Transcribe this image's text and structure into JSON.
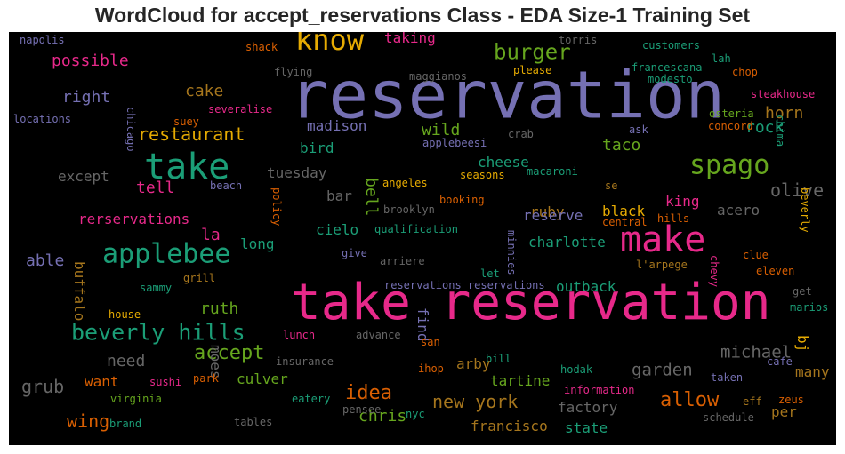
{
  "chart_data": {
    "type": "wordcloud",
    "title": "WordCloud for accept_reservations Class - EDA Size-1 Training Set",
    "background": "#000000",
    "words": [
      {
        "text": "reservation",
        "color": "#7570b3"
      },
      {
        "text": "take reservation",
        "color": "#e7298a"
      },
      {
        "text": "take",
        "color": "#1b9e77"
      },
      {
        "text": "make",
        "color": "#e7298a"
      },
      {
        "text": "know",
        "color": "#e6ab02"
      },
      {
        "text": "spago",
        "color": "#66a61e"
      },
      {
        "text": "applebee",
        "color": "#1b9e77"
      },
      {
        "text": "beverly hills",
        "color": "#1b9e77"
      },
      {
        "text": "burger",
        "color": "#66a61e"
      },
      {
        "text": "restaurant",
        "color": "#e6ab02"
      },
      {
        "text": "accept",
        "color": "#66a61e"
      },
      {
        "text": "idea",
        "color": "#d95f02"
      },
      {
        "text": "allow",
        "color": "#d95f02"
      },
      {
        "text": "garden",
        "color": "#666666"
      },
      {
        "text": "michael",
        "color": "#666666"
      },
      {
        "text": "new york",
        "color": "#a6761d"
      },
      {
        "text": "olive",
        "color": "#666666"
      },
      {
        "text": "grub",
        "color": "#666666"
      },
      {
        "text": "wing",
        "color": "#d95f02"
      },
      {
        "text": "possible",
        "color": "#e7298a"
      },
      {
        "text": "taco",
        "color": "#66a61e"
      },
      {
        "text": "ruth",
        "color": "#66a61e"
      },
      {
        "text": "chris",
        "color": "#66a61e"
      },
      {
        "text": "need",
        "color": "#666666"
      },
      {
        "text": "tell",
        "color": "#e7298a"
      },
      {
        "text": "la",
        "color": "#e7298a"
      },
      {
        "text": "able",
        "color": "#7570b3"
      },
      {
        "text": "cake",
        "color": "#a6761d"
      },
      {
        "text": "right",
        "color": "#7570b3"
      },
      {
        "text": "horn",
        "color": "#a6761d"
      },
      {
        "text": "rock",
        "color": "#1b9e77"
      },
      {
        "text": "wild",
        "color": "#66a61e"
      },
      {
        "text": "madison",
        "color": "#7570b3"
      },
      {
        "text": "cheese",
        "color": "#1b9e77"
      },
      {
        "text": "bird",
        "color": "#1b9e77"
      },
      {
        "text": "taking",
        "color": "#e7298a"
      },
      {
        "text": "tuesday",
        "color": "#666666"
      },
      {
        "text": "except",
        "color": "#666666"
      },
      {
        "text": "bar",
        "color": "#666666"
      },
      {
        "text": "bell",
        "color": "#66a61e"
      },
      {
        "text": "ruby",
        "color": "#a6761d"
      },
      {
        "text": "king",
        "color": "#e7298a"
      },
      {
        "text": "acero",
        "color": "#666666"
      },
      {
        "text": "black",
        "color": "#e6ab02"
      },
      {
        "text": "reserve",
        "color": "#7570b3"
      },
      {
        "text": "rerservations",
        "color": "#e7298a"
      },
      {
        "text": "long",
        "color": "#1b9e77"
      },
      {
        "text": "cielo",
        "color": "#1b9e77"
      },
      {
        "text": "charlotte",
        "color": "#1b9e77"
      },
      {
        "text": "outback",
        "color": "#1b9e77"
      },
      {
        "text": "buffalo",
        "color": "#a6761d"
      },
      {
        "text": "find",
        "color": "#7570b3"
      },
      {
        "text": "moes",
        "color": "#666666"
      },
      {
        "text": "arby",
        "color": "#a6761d"
      },
      {
        "text": "tartine",
        "color": "#66a61e"
      },
      {
        "text": "want",
        "color": "#d95f02"
      },
      {
        "text": "culver",
        "color": "#66a61e"
      },
      {
        "text": "factory",
        "color": "#666666"
      },
      {
        "text": "francisco",
        "color": "#a6761d"
      },
      {
        "text": "state",
        "color": "#1b9e77"
      },
      {
        "text": "bj",
        "color": "#e6ab02"
      },
      {
        "text": "many",
        "color": "#a6761d"
      },
      {
        "text": "per",
        "color": "#a6761d"
      },
      {
        "text": "napolis",
        "color": "#7570b3"
      },
      {
        "text": "shack",
        "color": "#d95f02"
      },
      {
        "text": "flying",
        "color": "#666666"
      },
      {
        "text": "maggianos",
        "color": "#666666"
      },
      {
        "text": "torris",
        "color": "#666666"
      },
      {
        "text": "customers",
        "color": "#1b9e77"
      },
      {
        "text": "lah",
        "color": "#1b9e77"
      },
      {
        "text": "please",
        "color": "#e6ab02"
      },
      {
        "text": "francescana",
        "color": "#1b9e77"
      },
      {
        "text": "chop",
        "color": "#d95f02"
      },
      {
        "text": "modesto",
        "color": "#1b9e77"
      },
      {
        "text": "steakhouse",
        "color": "#e7298a"
      },
      {
        "text": "locations",
        "color": "#7570b3"
      },
      {
        "text": "severalise",
        "color": "#e7298a"
      },
      {
        "text": "suey",
        "color": "#d95f02"
      },
      {
        "text": "chicago",
        "color": "#7570b3"
      },
      {
        "text": "ask",
        "color": "#7570b3"
      },
      {
        "text": "crab",
        "color": "#666666"
      },
      {
        "text": "osteria",
        "color": "#66a61e"
      },
      {
        "text": "concord",
        "color": "#d95f02"
      },
      {
        "text": "chima",
        "color": "#1b9e77"
      },
      {
        "text": "applebeesi",
        "color": "#7570b3"
      },
      {
        "text": "seasons",
        "color": "#e6ab02"
      },
      {
        "text": "macaroni",
        "color": "#1b9e77"
      },
      {
        "text": "angeles",
        "color": "#e6ab02"
      },
      {
        "text": "booking",
        "color": "#d95f02"
      },
      {
        "text": "se",
        "color": "#a6761d"
      },
      {
        "text": "beach",
        "color": "#7570b3"
      },
      {
        "text": "policy",
        "color": "#d95f02"
      },
      {
        "text": "brooklyn",
        "color": "#666666"
      },
      {
        "text": "central",
        "color": "#d95f02"
      },
      {
        "text": "hills",
        "color": "#d95f02"
      },
      {
        "text": "beverly",
        "color": "#e6ab02"
      },
      {
        "text": "qualification",
        "color": "#1b9e77"
      },
      {
        "text": "minnies",
        "color": "#7570b3"
      },
      {
        "text": "chevy",
        "color": "#e7298a"
      },
      {
        "text": "l'arpege",
        "color": "#a6761d"
      },
      {
        "text": "clue",
        "color": "#d95f02"
      },
      {
        "text": "eleven",
        "color": "#d95f02"
      },
      {
        "text": "give",
        "color": "#7570b3"
      },
      {
        "text": "arriere",
        "color": "#666666"
      },
      {
        "text": "let",
        "color": "#1b9e77"
      },
      {
        "text": "sammy",
        "color": "#1b9e77"
      },
      {
        "text": "grill",
        "color": "#a6761d"
      },
      {
        "text": "reservations reservations",
        "color": "#7570b3"
      },
      {
        "text": "get",
        "color": "#666666"
      },
      {
        "text": "marios",
        "color": "#1b9e77"
      },
      {
        "text": "house",
        "color": "#e6ab02"
      },
      {
        "text": "lunch",
        "color": "#e7298a"
      },
      {
        "text": "advance",
        "color": "#666666"
      },
      {
        "text": "insurance",
        "color": "#666666"
      },
      {
        "text": "san",
        "color": "#d95f02"
      },
      {
        "text": "ihop",
        "color": "#d95f02"
      },
      {
        "text": "bill",
        "color": "#1b9e77"
      },
      {
        "text": "hodak",
        "color": "#1b9e77"
      },
      {
        "text": "cafe",
        "color": "#7570b3"
      },
      {
        "text": "taken",
        "color": "#7570b3"
      },
      {
        "text": "sushi",
        "color": "#e7298a"
      },
      {
        "text": "park",
        "color": "#d95f02"
      },
      {
        "text": "information",
        "color": "#e7298a"
      },
      {
        "text": "zeus",
        "color": "#d95f02"
      },
      {
        "text": "eff",
        "color": "#a6761d"
      },
      {
        "text": "virginia",
        "color": "#66a61e"
      },
      {
        "text": "eatery",
        "color": "#1b9e77"
      },
      {
        "text": "pensee",
        "color": "#666666"
      },
      {
        "text": "nyc",
        "color": "#1b9e77"
      },
      {
        "text": "schedule",
        "color": "#666666"
      },
      {
        "text": "brand",
        "color": "#1b9e77"
      },
      {
        "text": "tables",
        "color": "#666666"
      }
    ]
  }
}
